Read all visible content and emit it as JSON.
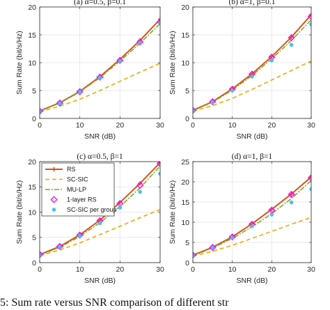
{
  "caption": "5: Sum rate versus SNR comparison of different str",
  "colors": {
    "RS": "#d95319",
    "SC-SIC": "#edb120",
    "MU-LP": "#77ac30",
    "1-layer RS": "#ff00ff",
    "SC-SIC per group": "#4dbeee"
  },
  "legend_labels": [
    "RS",
    "SC-SIC",
    "MU-LP",
    "1-layer RS",
    "SC-SIC per group"
  ],
  "chart_data": [
    {
      "type": "line",
      "title": "(a) α=0.5, β=0.1",
      "xlabel": "SNR (dB)",
      "ylabel": "Sum Rate (bit/s/Hz)",
      "xlim": [
        0,
        30
      ],
      "ylim": [
        0,
        20
      ],
      "xticks": [
        0,
        10,
        20,
        30
      ],
      "yticks": [
        0,
        5,
        10,
        15,
        20
      ],
      "grid": true,
      "legend": null,
      "x": [
        0,
        5,
        10,
        15,
        20,
        25,
        30
      ],
      "series": [
        {
          "name": "RS",
          "values": [
            1.35,
            2.8,
            4.85,
            7.5,
            10.6,
            14.0,
            17.8
          ]
        },
        {
          "name": "SC-SIC",
          "values": [
            1.2,
            2.2,
            3.45,
            5.0,
            6.65,
            8.3,
            9.9
          ]
        },
        {
          "name": "MU-LP",
          "values": [
            1.3,
            2.75,
            4.75,
            7.3,
            10.3,
            13.5,
            17.0
          ]
        },
        {
          "name": "1-layer RS",
          "values": [
            1.3,
            2.75,
            4.8,
            7.4,
            10.4,
            13.7,
            17.3
          ]
        },
        {
          "name": "SC-SIC per group",
          "values": [
            1.3,
            2.7,
            4.75,
            7.3,
            10.3,
            13.6,
            17.1
          ]
        }
      ]
    },
    {
      "type": "line",
      "title": "(b) α=1, β=0.1",
      "xlabel": "SNR (dB)",
      "ylabel": "Sum Rate (bit/s/Hz)",
      "xlim": [
        0,
        30
      ],
      "ylim": [
        0,
        20
      ],
      "xticks": [
        0,
        10,
        20,
        30
      ],
      "yticks": [
        0,
        5,
        10,
        15,
        20
      ],
      "grid": true,
      "legend": null,
      "x": [
        0,
        5,
        10,
        15,
        20,
        25,
        30
      ],
      "series": [
        {
          "name": "RS",
          "values": [
            1.45,
            3.0,
            5.3,
            8.0,
            11.1,
            14.6,
            18.6
          ]
        },
        {
          "name": "SC-SIC",
          "values": [
            1.3,
            2.3,
            3.6,
            5.2,
            6.9,
            8.6,
            10.3
          ]
        },
        {
          "name": "MU-LP",
          "values": [
            1.4,
            2.9,
            5.1,
            7.7,
            10.7,
            14.0,
            17.7
          ]
        },
        {
          "name": "1-layer RS",
          "values": [
            1.45,
            3.0,
            5.25,
            7.95,
            11.0,
            14.5,
            18.3
          ]
        },
        {
          "name": "SC-SIC per group",
          "values": [
            1.4,
            2.85,
            5.0,
            7.5,
            10.4,
            13.2,
            16.9
          ]
        }
      ]
    },
    {
      "type": "line",
      "title": "(c) α=0.5, β=1",
      "xlabel": "SNR (dB)",
      "ylabel": "Sum Rate (bit/s/Hz)",
      "xlim": [
        0,
        30
      ],
      "ylim": [
        0,
        20
      ],
      "xticks": [
        0,
        10,
        20,
        30
      ],
      "yticks": [
        0,
        5,
        10,
        15,
        20
      ],
      "grid": true,
      "legend": "top-left",
      "x": [
        0,
        5,
        10,
        15,
        20,
        25,
        30
      ],
      "series": [
        {
          "name": "RS",
          "values": [
            1.6,
            3.2,
            5.5,
            8.4,
            11.9,
            15.7,
            19.8
          ]
        },
        {
          "name": "SC-SIC",
          "values": [
            1.4,
            2.5,
            3.9,
            5.55,
            7.2,
            8.9,
            10.5
          ]
        },
        {
          "name": "MU-LP",
          "values": [
            1.5,
            3.0,
            5.2,
            7.9,
            11.1,
            14.8,
            19.1
          ]
        },
        {
          "name": "1-layer RS",
          "values": [
            1.6,
            3.2,
            5.45,
            8.3,
            11.7,
            15.3,
            19.6
          ]
        },
        {
          "name": "SC-SIC per group",
          "values": [
            1.55,
            3.1,
            5.3,
            7.8,
            10.9,
            14.0,
            17.6
          ]
        }
      ]
    },
    {
      "type": "line",
      "title": "(d) α=1, β=1",
      "xlabel": "SNR (dB)",
      "ylabel": "Sum Rate (bit/s/Hz)",
      "xlim": [
        0,
        30
      ],
      "ylim": [
        0,
        25
      ],
      "xticks": [
        0,
        10,
        20,
        30
      ],
      "yticks": [
        0,
        5,
        10,
        15,
        20,
        25
      ],
      "grid": true,
      "legend": null,
      "x": [
        0,
        5,
        10,
        15,
        20,
        25,
        30
      ],
      "series": [
        {
          "name": "RS",
          "values": [
            1.85,
            3.8,
            6.4,
            9.6,
            13.2,
            17.0,
            21.2
          ]
        },
        {
          "name": "SC-SIC",
          "values": [
            1.6,
            2.8,
            4.3,
            6.0,
            7.75,
            9.5,
            11.2
          ]
        },
        {
          "name": "MU-LP",
          "values": [
            1.7,
            3.6,
            6.0,
            8.9,
            12.1,
            15.9,
            20.3
          ]
        },
        {
          "name": "1-layer RS",
          "values": [
            1.85,
            3.75,
            6.35,
            9.5,
            13.0,
            16.9,
            21.0
          ]
        },
        {
          "name": "SC-SIC per group",
          "values": [
            1.75,
            3.7,
            6.2,
            9.0,
            11.9,
            14.9,
            18.2
          ]
        }
      ]
    }
  ]
}
